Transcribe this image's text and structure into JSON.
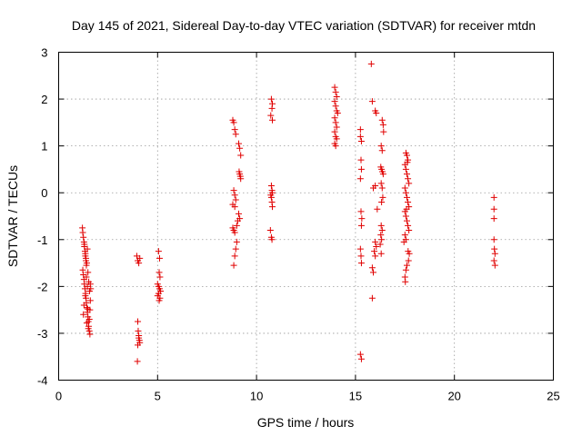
{
  "chart_data": {
    "type": "scatter",
    "title": "Day 145 of 2021, Sidereal Day-to-day VTEC variation (SDTVAR) for receiver mtdn",
    "xlabel": "GPS time / hours",
    "ylabel": "SDTVAR / TECUs",
    "xlim": [
      0,
      25
    ],
    "ylim": [
      -4,
      3
    ],
    "xticks": [
      0,
      5,
      10,
      15,
      20,
      25
    ],
    "yticks": [
      -4,
      -3,
      -2,
      -1,
      0,
      1,
      2,
      3
    ],
    "xtick_labels": [
      "0",
      "5",
      "10",
      "15",
      "20",
      "25"
    ],
    "ytick_labels": [
      "-4",
      "-3",
      "-2",
      "-1",
      "0",
      "1",
      "2",
      "3"
    ],
    "grid": true,
    "marker": "+",
    "color": "#e00000",
    "series": [
      {
        "name": "SDTVAR",
        "points": [
          [
            1.2,
            -0.75
          ],
          [
            1.22,
            -0.85
          ],
          [
            1.25,
            -0.95
          ],
          [
            1.28,
            -1.05
          ],
          [
            1.3,
            -1.15
          ],
          [
            1.33,
            -1.25
          ],
          [
            1.35,
            -1.35
          ],
          [
            1.38,
            -1.45
          ],
          [
            1.4,
            -1.55
          ],
          [
            1.22,
            -1.65
          ],
          [
            1.25,
            -1.75
          ],
          [
            1.28,
            -1.85
          ],
          [
            1.3,
            -1.95
          ],
          [
            1.33,
            -2.05
          ],
          [
            1.36,
            -2.15
          ],
          [
            1.38,
            -2.25
          ],
          [
            1.4,
            -2.35
          ],
          [
            1.43,
            -2.45
          ],
          [
            1.45,
            -2.55
          ],
          [
            1.48,
            -2.65
          ],
          [
            1.5,
            -2.75
          ],
          [
            1.52,
            -2.85
          ],
          [
            1.55,
            -2.95
          ],
          [
            1.58,
            -3.02
          ],
          [
            1.3,
            -1.1
          ],
          [
            1.35,
            -1.3
          ],
          [
            1.42,
            -1.5
          ],
          [
            1.48,
            -1.7
          ],
          [
            1.52,
            -1.9
          ],
          [
            1.56,
            -2.1
          ],
          [
            1.6,
            -2.3
          ],
          [
            1.58,
            -2.5
          ],
          [
            1.55,
            -2.7
          ],
          [
            1.5,
            -2.9
          ],
          [
            1.45,
            -2.0
          ],
          [
            1.4,
            -1.8
          ],
          [
            1.35,
            -2.2
          ],
          [
            1.28,
            -2.4
          ],
          [
            1.25,
            -2.6
          ],
          [
            1.6,
            -1.95
          ],
          [
            1.62,
            -2.05
          ],
          [
            1.45,
            -1.2
          ],
          [
            1.38,
            -1.4
          ],
          [
            1.42,
            -2.78
          ],
          [
            1.47,
            -2.48
          ],
          [
            3.95,
            -1.35
          ],
          [
            4.0,
            -1.45
          ],
          [
            4.05,
            -1.5
          ],
          [
            4.1,
            -1.4
          ],
          [
            4.0,
            -2.75
          ],
          [
            4.02,
            -2.95
          ],
          [
            4.05,
            -3.05
          ],
          [
            4.08,
            -3.15
          ],
          [
            4.0,
            -3.25
          ],
          [
            4.05,
            -3.1
          ],
          [
            3.98,
            -3.6
          ],
          [
            4.1,
            -3.2
          ],
          [
            5.05,
            -1.25
          ],
          [
            5.1,
            -1.4
          ],
          [
            5.08,
            -1.7
          ],
          [
            5.12,
            -1.8
          ],
          [
            5.0,
            -1.95
          ],
          [
            5.05,
            -2.0
          ],
          [
            5.1,
            -2.05
          ],
          [
            5.15,
            -2.1
          ],
          [
            5.0,
            -2.2
          ],
          [
            5.08,
            -2.3
          ],
          [
            5.12,
            -2.25
          ],
          [
            5.05,
            -2.15
          ],
          [
            8.8,
            1.55
          ],
          [
            8.85,
            1.5
          ],
          [
            8.9,
            1.35
          ],
          [
            8.95,
            1.25
          ],
          [
            9.1,
            1.05
          ],
          [
            9.15,
            0.95
          ],
          [
            9.2,
            0.8
          ],
          [
            9.12,
            0.45
          ],
          [
            9.15,
            0.4
          ],
          [
            9.18,
            0.35
          ],
          [
            9.2,
            0.3
          ],
          [
            8.85,
            0.05
          ],
          [
            8.9,
            -0.05
          ],
          [
            8.95,
            -0.15
          ],
          [
            8.9,
            -0.3
          ],
          [
            9.1,
            -0.45
          ],
          [
            9.15,
            -0.55
          ],
          [
            9.05,
            -0.6
          ],
          [
            8.8,
            -0.75
          ],
          [
            8.85,
            -0.8
          ],
          [
            8.9,
            -0.85
          ],
          [
            9.0,
            -1.05
          ],
          [
            8.95,
            -1.2
          ],
          [
            8.9,
            -1.35
          ],
          [
            8.85,
            -1.55
          ],
          [
            8.8,
            -0.25
          ],
          [
            9.0,
            -0.7
          ],
          [
            10.75,
            2.0
          ],
          [
            10.8,
            1.9
          ],
          [
            10.78,
            1.8
          ],
          [
            10.72,
            1.65
          ],
          [
            10.8,
            1.55
          ],
          [
            10.75,
            0.15
          ],
          [
            10.78,
            0.05
          ],
          [
            10.8,
            0.0
          ],
          [
            10.72,
            -0.05
          ],
          [
            10.75,
            -0.1
          ],
          [
            10.78,
            -0.2
          ],
          [
            10.8,
            -0.3
          ],
          [
            10.7,
            -0.8
          ],
          [
            10.75,
            -0.95
          ],
          [
            10.78,
            -1.0
          ],
          [
            13.95,
            2.25
          ],
          [
            14.0,
            2.15
          ],
          [
            14.05,
            2.05
          ],
          [
            13.95,
            1.95
          ],
          [
            14.0,
            1.85
          ],
          [
            14.05,
            1.75
          ],
          [
            14.1,
            1.7
          ],
          [
            13.95,
            1.6
          ],
          [
            14.0,
            1.5
          ],
          [
            14.05,
            1.4
          ],
          [
            13.95,
            1.3
          ],
          [
            14.0,
            1.2
          ],
          [
            14.05,
            1.15
          ],
          [
            13.95,
            1.05
          ],
          [
            14.0,
            1.0
          ],
          [
            15.25,
            1.35
          ],
          [
            15.25,
            1.2
          ],
          [
            15.3,
            1.1
          ],
          [
            15.28,
            0.7
          ],
          [
            15.3,
            0.5
          ],
          [
            15.25,
            0.3
          ],
          [
            15.28,
            -0.4
          ],
          [
            15.32,
            -0.55
          ],
          [
            15.3,
            -0.7
          ],
          [
            15.25,
            -1.2
          ],
          [
            15.28,
            -1.35
          ],
          [
            15.3,
            -1.5
          ],
          [
            15.25,
            -3.45
          ],
          [
            15.3,
            -3.55
          ],
          [
            15.8,
            2.75
          ],
          [
            15.85,
            1.95
          ],
          [
            16.0,
            1.75
          ],
          [
            16.05,
            1.7
          ],
          [
            16.35,
            1.55
          ],
          [
            16.4,
            1.45
          ],
          [
            16.42,
            1.3
          ],
          [
            16.3,
            1.0
          ],
          [
            16.35,
            0.9
          ],
          [
            16.28,
            0.55
          ],
          [
            16.32,
            0.5
          ],
          [
            16.36,
            0.45
          ],
          [
            16.4,
            0.4
          ],
          [
            16.3,
            0.2
          ],
          [
            15.9,
            0.1
          ],
          [
            16.0,
            0.15
          ],
          [
            16.35,
            0.1
          ],
          [
            16.38,
            -0.1
          ],
          [
            16.32,
            -0.2
          ],
          [
            16.1,
            -0.35
          ],
          [
            16.3,
            -0.7
          ],
          [
            16.35,
            -0.8
          ],
          [
            16.28,
            -0.9
          ],
          [
            16.32,
            -1.0
          ],
          [
            16.25,
            -1.1
          ],
          [
            16.0,
            -1.05
          ],
          [
            16.05,
            -1.15
          ],
          [
            15.95,
            -1.25
          ],
          [
            16.0,
            -1.35
          ],
          [
            16.3,
            -1.3
          ],
          [
            15.85,
            -1.6
          ],
          [
            15.9,
            -1.7
          ],
          [
            15.85,
            -2.25
          ],
          [
            17.55,
            0.85
          ],
          [
            17.6,
            0.8
          ],
          [
            17.65,
            0.7
          ],
          [
            17.5,
            0.6
          ],
          [
            17.55,
            0.5
          ],
          [
            17.6,
            0.4
          ],
          [
            17.65,
            0.3
          ],
          [
            17.7,
            0.2
          ],
          [
            17.5,
            0.1
          ],
          [
            17.55,
            0.0
          ],
          [
            17.6,
            -0.1
          ],
          [
            17.65,
            -0.2
          ],
          [
            17.7,
            -0.3
          ],
          [
            17.5,
            -0.4
          ],
          [
            17.55,
            -0.5
          ],
          [
            17.6,
            -0.6
          ],
          [
            17.65,
            -0.7
          ],
          [
            17.7,
            -0.8
          ],
          [
            17.5,
            -0.9
          ],
          [
            17.55,
            -1.0
          ],
          [
            17.72,
            -1.3
          ],
          [
            17.68,
            -1.45
          ],
          [
            17.6,
            -1.55
          ],
          [
            17.55,
            -1.65
          ],
          [
            17.5,
            -1.8
          ],
          [
            17.52,
            -1.9
          ],
          [
            17.45,
            -1.05
          ],
          [
            17.58,
            -0.35
          ],
          [
            17.62,
            0.65
          ],
          [
            17.66,
            -1.25
          ],
          [
            22.0,
            -0.1
          ],
          [
            22.0,
            -0.35
          ],
          [
            22.0,
            -0.55
          ],
          [
            22.0,
            -1.0
          ],
          [
            22.02,
            -1.2
          ],
          [
            22.05,
            -1.3
          ],
          [
            22.0,
            -1.45
          ],
          [
            22.05,
            -1.55
          ]
        ]
      }
    ]
  }
}
